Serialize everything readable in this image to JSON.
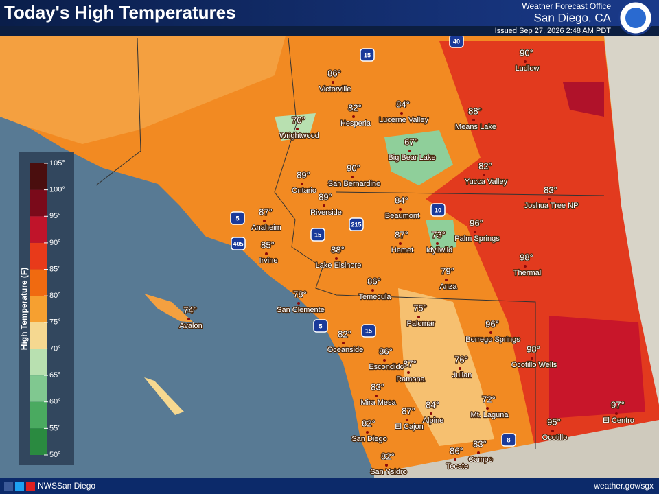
{
  "header": {
    "title": "Today's High Temperatures",
    "office": "Weather Forecast Office",
    "location": "San Diego, CA",
    "issued": "Issued Sep 27, 2026 2:48 AM PDT"
  },
  "legend": {
    "title": "High Temperature (F)",
    "labels": [
      "105°",
      "100°",
      "95°",
      "90°",
      "85°",
      "80°",
      "75°",
      "70°",
      "65°",
      "60°",
      "55°",
      "50°"
    ]
  },
  "cities": [
    {
      "name": "Victorville",
      "temp": "86°"
    },
    {
      "name": "Hesperia",
      "temp": "82°"
    },
    {
      "name": "Lucerne Valley",
      "temp": "84°"
    },
    {
      "name": "Means Lake",
      "temp": "88°"
    },
    {
      "name": "Ludlow",
      "temp": "90°"
    },
    {
      "name": "Wrightwood",
      "temp": "70°"
    },
    {
      "name": "Big Bear Lake",
      "temp": "67°"
    },
    {
      "name": "Yucca Valley",
      "temp": "82°"
    },
    {
      "name": "Joshua Tree NP",
      "temp": "83°"
    },
    {
      "name": "Ontario",
      "temp": "89°"
    },
    {
      "name": "San Bernardino",
      "temp": "90°"
    },
    {
      "name": "Riverside",
      "temp": "89°"
    },
    {
      "name": "Beaumont",
      "temp": "84°"
    },
    {
      "name": "Anaheim",
      "temp": "87°"
    },
    {
      "name": "Palm Springs",
      "temp": "96°"
    },
    {
      "name": "Irvine",
      "temp": "85°"
    },
    {
      "name": "Hemet",
      "temp": "87°"
    },
    {
      "name": "Idyllwild",
      "temp": "73°"
    },
    {
      "name": "Lake Elsinore",
      "temp": "88°"
    },
    {
      "name": "Thermal",
      "temp": "98°"
    },
    {
      "name": "Anza",
      "temp": "79°"
    },
    {
      "name": "Temecula",
      "temp": "86°"
    },
    {
      "name": "San Clemente",
      "temp": "78°"
    },
    {
      "name": "Avalon",
      "temp": "74°"
    },
    {
      "name": "Palomar",
      "temp": "75°"
    },
    {
      "name": "Borrego Springs",
      "temp": "96°"
    },
    {
      "name": "Oceanside",
      "temp": "82°"
    },
    {
      "name": "Ocotillo Wells",
      "temp": "98°"
    },
    {
      "name": "Escondido",
      "temp": "86°"
    },
    {
      "name": "Ramona",
      "temp": "87°"
    },
    {
      "name": "Julian",
      "temp": "76°"
    },
    {
      "name": "Mira Mesa",
      "temp": "83°"
    },
    {
      "name": "Alpine",
      "temp": "84°"
    },
    {
      "name": "Mt. Laguna",
      "temp": "72°"
    },
    {
      "name": "El Cajon",
      "temp": "87°"
    },
    {
      "name": "El Centro",
      "temp": "97°"
    },
    {
      "name": "San Diego",
      "temp": "82°"
    },
    {
      "name": "Ocotillo",
      "temp": "95°"
    },
    {
      "name": "Campo",
      "temp": "83°"
    },
    {
      "name": "Tecate",
      "temp": "86°"
    },
    {
      "name": "San Ysidro",
      "temp": "82°"
    }
  ],
  "highways": [
    "15",
    "40",
    "5",
    "405",
    "15",
    "215",
    "10",
    "5",
    "15",
    "8"
  ],
  "footer": {
    "social": "NWSSan Diego",
    "url": "weather.gov/sgx"
  }
}
